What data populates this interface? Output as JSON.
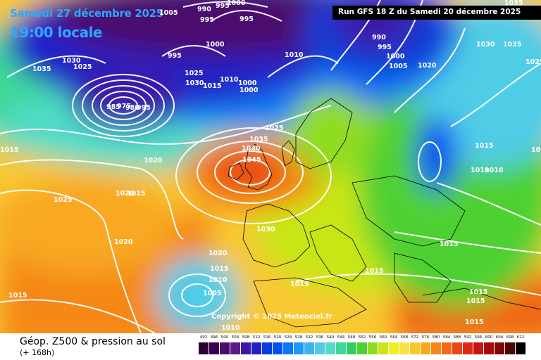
{
  "header": {
    "date_label": "Samedi 27 décembre 2025",
    "time_label": "19:00 locale",
    "run_label": "Run GFS 18 Z du Samedi 20 décembre 2025"
  },
  "copyright": "Copyright © 2025 Meteociel.fr",
  "footer": {
    "title": "Géop. Z500 & pression au sol",
    "subtitle": "(+ 168h)"
  },
  "colors": {
    "label_blue": "#2ba8ff",
    "isobar": "#ffffff",
    "run_bar": "#000000"
  },
  "legend_scale": [
    {
      "value": "492",
      "color": "#2c0033"
    },
    {
      "value": "496",
      "color": "#3a0050"
    },
    {
      "value": "500",
      "color": "#4b0a6e"
    },
    {
      "value": "504",
      "color": "#5a1a88"
    },
    {
      "value": "508",
      "color": "#3b1aa8"
    },
    {
      "value": "512",
      "color": "#2020c8"
    },
    {
      "value": "516",
      "color": "#0a3cd8"
    },
    {
      "value": "520",
      "color": "#0050f0"
    },
    {
      "value": "524",
      "color": "#0a78f5"
    },
    {
      "value": "528",
      "color": "#2098f5"
    },
    {
      "value": "532",
      "color": "#3cb4f0"
    },
    {
      "value": "536",
      "color": "#50cce6"
    },
    {
      "value": "540",
      "color": "#50dcc8"
    },
    {
      "value": "544",
      "color": "#40d898"
    },
    {
      "value": "548",
      "color": "#30cc60"
    },
    {
      "value": "552",
      "color": "#50d030"
    },
    {
      "value": "556",
      "color": "#90dc20"
    },
    {
      "value": "560",
      "color": "#c8e618"
    },
    {
      "value": "564",
      "color": "#f0f020"
    },
    {
      "value": "568",
      "color": "#fae040"
    },
    {
      "value": "572",
      "color": "#f8c830"
    },
    {
      "value": "576",
      "color": "#f8a820"
    },
    {
      "value": "580",
      "color": "#f58818"
    },
    {
      "value": "584",
      "color": "#f06818"
    },
    {
      "value": "588",
      "color": "#e84818"
    },
    {
      "value": "592",
      "color": "#e02818"
    },
    {
      "value": "596",
      "color": "#c81414"
    },
    {
      "value": "600",
      "color": "#a80a0a"
    },
    {
      "value": "604",
      "color": "#800808"
    },
    {
      "value": "608",
      "color": "#500404"
    },
    {
      "value": "612",
      "color": "#000000"
    }
  ],
  "isobar_labels": [
    {
      "id": "i01",
      "text": "1005"
    },
    {
      "id": "i02",
      "text": "990"
    },
    {
      "id": "i03",
      "text": "995"
    },
    {
      "id": "i04",
      "text": "1000"
    },
    {
      "id": "i05",
      "text": "995"
    },
    {
      "id": "i06",
      "text": "995"
    },
    {
      "id": "i07",
      "text": "1035"
    },
    {
      "id": "i08",
      "text": "1030"
    },
    {
      "id": "i09",
      "text": "1025"
    },
    {
      "id": "i10",
      "text": "1000"
    },
    {
      "id": "i11",
      "text": "995"
    },
    {
      "id": "i12",
      "text": "1025"
    },
    {
      "id": "i13",
      "text": "1030"
    },
    {
      "id": "i14",
      "text": "1015"
    },
    {
      "id": "i15",
      "text": "1010"
    },
    {
      "id": "i16",
      "text": "1000"
    },
    {
      "id": "i17",
      "text": "1010"
    },
    {
      "id": "i18",
      "text": "1000"
    },
    {
      "id": "i19",
      "text": "985"
    },
    {
      "id": "i20",
      "text": "975"
    },
    {
      "id": "i21",
      "text": "980"
    },
    {
      "id": "i22",
      "text": "995"
    },
    {
      "id": "i23",
      "text": "1015"
    },
    {
      "id": "i24",
      "text": "1020"
    },
    {
      "id": "i25",
      "text": "1025"
    },
    {
      "id": "i26",
      "text": "1035"
    },
    {
      "id": "i27",
      "text": "1040"
    },
    {
      "id": "i28",
      "text": "1045"
    },
    {
      "id": "i29",
      "text": "1025"
    },
    {
      "id": "i30",
      "text": "1020"
    },
    {
      "id": "i31",
      "text": "1015"
    },
    {
      "id": "i32",
      "text": "1020"
    },
    {
      "id": "i33",
      "text": "1030"
    },
    {
      "id": "i34",
      "text": "1020"
    },
    {
      "id": "i35",
      "text": "1015"
    },
    {
      "id": "i36",
      "text": "1010"
    },
    {
      "id": "i37",
      "text": "1005"
    },
    {
      "id": "i38",
      "text": "1015"
    },
    {
      "id": "i39",
      "text": "1010"
    },
    {
      "id": "i40",
      "text": "1015"
    },
    {
      "id": "i41",
      "text": "1015"
    },
    {
      "id": "i42",
      "text": "990"
    },
    {
      "id": "i43",
      "text": "995"
    },
    {
      "id": "i44",
      "text": "1000"
    },
    {
      "id": "i45",
      "text": "1005"
    },
    {
      "id": "i46",
      "text": "1020"
    },
    {
      "id": "i47",
      "text": "1030"
    },
    {
      "id": "i48",
      "text": "1035"
    },
    {
      "id": "i49",
      "text": "1025"
    },
    {
      "id": "i50",
      "text": "1035"
    },
    {
      "id": "i51",
      "text": "1015"
    },
    {
      "id": "i52",
      "text": "1010"
    },
    {
      "id": "i53",
      "text": "1010"
    },
    {
      "id": "i54",
      "text": "1015"
    },
    {
      "id": "i55",
      "text": "1015"
    },
    {
      "id": "i56",
      "text": "1015"
    },
    {
      "id": "i57",
      "text": "1015"
    },
    {
      "id": "i58",
      "text": "1015"
    }
  ]
}
